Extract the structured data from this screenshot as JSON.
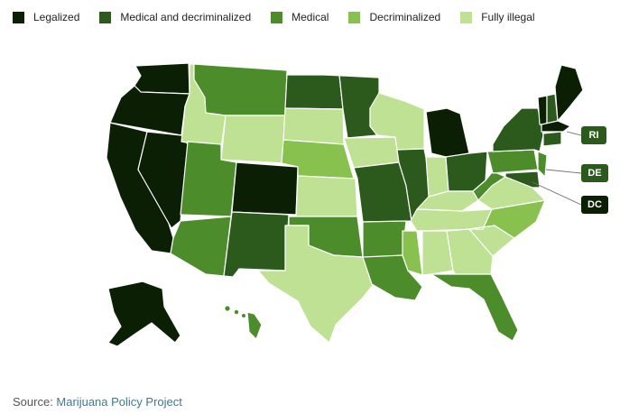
{
  "legend": [
    {
      "label": "Legalized",
      "color": "#0b1f05"
    },
    {
      "label": "Medical and decriminalized",
      "color": "#2b5a1c"
    },
    {
      "label": "Medical",
      "color": "#4c8c2b"
    },
    {
      "label": "Decriminalized",
      "color": "#88c14e"
    },
    {
      "label": "Fully illegal",
      "color": "#bfe193"
    }
  ],
  "colors": {
    "legalized": "#0b1f05",
    "medical_decriminalized": "#2b5a1c",
    "medical": "#4c8c2b",
    "decriminalized": "#88c14e",
    "illegal": "#bfe193",
    "border": "#ffffff"
  },
  "states": {
    "WA": "legalized",
    "OR": "legalized",
    "CA": "legalized",
    "NV": "legalized",
    "CO": "legalized",
    "AK": "legalized",
    "MI": "legalized",
    "VT": "legalized",
    "MA": "legalized",
    "ME": "legalized",
    "MN": "medical_decriminalized",
    "ND": "medical_decriminalized",
    "MO": "medical_decriminalized",
    "IL": "medical_decriminalized",
    "OH": "medical_decriminalized",
    "NY": "medical_decriminalized",
    "NM": "medical_decriminalized",
    "CT": "medical_decriminalized",
    "NH": "medical_decriminalized",
    "MD": "medical_decriminalized",
    "MT": "medical",
    "UT": "medical",
    "AZ": "medical",
    "OK": "medical",
    "AR": "medical",
    "LA": "medical",
    "FL": "medical",
    "HI": "medical",
    "PA": "medical",
    "WV": "medical",
    "NJ": "medical",
    "NE": "decriminalized",
    "MS": "decriminalized",
    "NC": "decriminalized",
    "ID": "illegal",
    "WY": "illegal",
    "SD": "illegal",
    "KS": "illegal",
    "TX": "illegal",
    "IA": "illegal",
    "WI": "illegal",
    "IN": "illegal",
    "KY": "illegal",
    "TN": "illegal",
    "AL": "illegal",
    "GA": "illegal",
    "SC": "illegal",
    "VA": "illegal"
  },
  "callouts": [
    {
      "label": "RI",
      "status": "medical_decriminalized"
    },
    {
      "label": "DE",
      "status": "medical_decriminalized"
    },
    {
      "label": "DC",
      "status": "legalized"
    }
  ],
  "source": {
    "prefix": "Source: ",
    "name": "Marijuana Policy Project"
  }
}
